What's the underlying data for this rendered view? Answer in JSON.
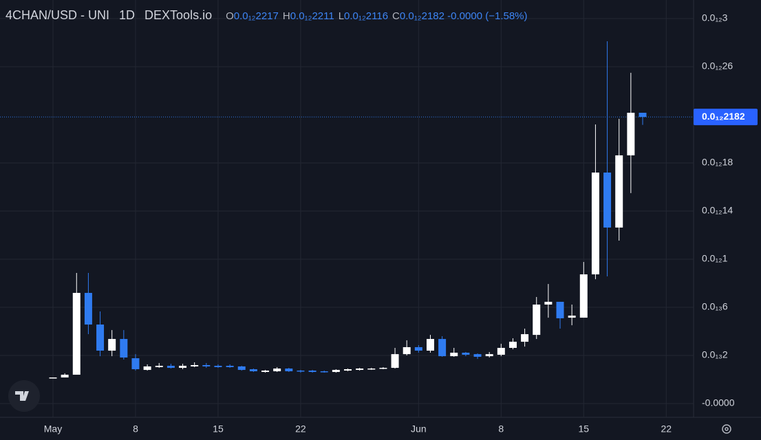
{
  "chart_data": {
    "type": "candlestick",
    "title": "4CHAN/USD - UNI",
    "interval": "1D",
    "source": "DEXTools.io",
    "ohlc_keys": [
      "O",
      "H",
      "L",
      "C"
    ],
    "ohlc_labels": [
      "0.0₁₂2217",
      "0.0₁₂2211",
      "0.0₁₂2116",
      "0.0₁₂2182"
    ],
    "change": "-0.0000",
    "change_percent": "(−1.58%)",
    "up_color": "#ffffff",
    "down_color": "#2f7bf0",
    "grid": true,
    "categories": [
      "May",
      null,
      null,
      null,
      null,
      null,
      null,
      "8",
      null,
      null,
      null,
      null,
      null,
      null,
      "15",
      null,
      null,
      null,
      null,
      null,
      null,
      "22",
      null,
      null,
      null,
      null,
      null,
      null,
      null,
      null,
      null,
      "Jun",
      null,
      null,
      null,
      null,
      null,
      null,
      "8",
      null,
      null,
      null,
      null,
      null,
      null,
      "15",
      null,
      null,
      null,
      null,
      null,
      null,
      "22"
    ],
    "open": [
      1.14e-15,
      1.71e-15,
      4e-15,
      7.2e-14,
      4.57e-14,
      2.4e-14,
      3.37e-14,
      1.77e-14,
      8e-15,
      1.03e-14,
      1.14e-14,
      9.71e-15,
      1.09e-14,
      1.2e-14,
      1.14e-14,
      1.14e-14,
      1.09e-14,
      8.57e-15,
      6.29e-15,
      6.86e-15,
      9.14e-15,
      7.43e-15,
      7.43e-15,
      6.86e-15,
      6.29e-15,
      7.43e-15,
      8e-15,
      8.57e-15,
      9.14e-15,
      9.71e-15,
      2.11e-14,
      2.69e-14,
      2.4e-14,
      3.37e-14,
      1.94e-14,
      2.23e-14,
      2.11e-14,
      1.94e-14,
      2.06e-14,
      2.63e-14,
      3.14e-14,
      3.71e-14,
      6.23e-14,
      6.46e-14,
      5.14e-14,
      5.14e-14,
      8.74e-14,
      1.72e-13,
      1.263e-13,
      1.863e-13,
      2.217e-13,
      null,
      null
    ],
    "high": [
      1.71e-15,
      5.14e-15,
      8.86e-14,
      8.86e-14,
      5.66e-14,
      4.11e-14,
      4.11e-14,
      2.11e-14,
      1.26e-14,
      1.37e-14,
      1.31e-14,
      1.31e-14,
      1.43e-14,
      1.37e-14,
      1.26e-14,
      1.26e-14,
      1.14e-14,
      9.14e-15,
      8e-15,
      1.03e-14,
      9.71e-15,
      8e-15,
      8e-15,
      7.43e-15,
      8.57e-15,
      9.14e-15,
      9.71e-15,
      9.71e-15,
      1.03e-14,
      2.63e-14,
      3.26e-14,
      2.86e-14,
      3.71e-14,
      3.6e-14,
      2.63e-14,
      2.29e-14,
      2.17e-14,
      2.29e-14,
      2.97e-14,
      3.43e-14,
      4.23e-14,
      6.86e-14,
      7.94e-14,
      6.46e-14,
      6.23e-14,
      9.77e-14,
      2.12e-13,
      2.811e-13,
      2.166e-13,
      2.549e-13,
      2.211e-13,
      null,
      null
    ],
    "low": [
      1.14e-15,
      1.71e-15,
      4e-15,
      3.77e-14,
      1.94e-14,
      1.94e-14,
      1.66e-14,
      7.43e-15,
      7.43e-15,
      9.71e-15,
      9.14e-15,
      8.57e-15,
      1.03e-14,
      9.71e-15,
      9.71e-15,
      9.71e-15,
      7.43e-15,
      6.29e-15,
      5.71e-15,
      6.29e-15,
      6.29e-15,
      5.71e-15,
      5.71e-15,
      5.71e-15,
      5.71e-15,
      6.86e-15,
      7.43e-15,
      8e-15,
      8.57e-15,
      9.14e-15,
      2e-14,
      2.23e-14,
      2.23e-14,
      1.89e-14,
      1.89e-14,
      1.94e-14,
      1.71e-14,
      1.83e-14,
      1.94e-14,
      2.51e-14,
      2.74e-14,
      3.37e-14,
      5.14e-14,
      4.23e-14,
      4.51e-14,
      5.14e-14,
      8.34e-14,
      8.57e-14,
      1.154e-13,
      1.549e-13,
      2.116e-13,
      null,
      null
    ],
    "close": [
      1.71e-15,
      4e-15,
      7.2e-14,
      4.57e-14,
      2.4e-14,
      3.37e-14,
      1.83e-14,
      8.57e-15,
      1.09e-14,
      1.14e-14,
      9.71e-15,
      1.14e-14,
      1.2e-14,
      1.09e-14,
      1.03e-14,
      1.03e-14,
      8e-15,
      6.86e-15,
      7.43e-15,
      9.14e-15,
      6.86e-15,
      6.86e-15,
      6.29e-15,
      6.29e-15,
      8e-15,
      8.57e-15,
      9.14e-15,
      9.14e-15,
      9.71e-15,
      2.11e-14,
      2.69e-14,
      2.4e-14,
      3.37e-14,
      1.94e-14,
      2.23e-14,
      2.06e-14,
      1.89e-14,
      2.11e-14,
      2.63e-14,
      3.14e-14,
      3.77e-14,
      6.23e-14,
      6.46e-14,
      5.09e-14,
      5.31e-14,
      8.74e-14,
      1.72e-13,
      1.263e-13,
      1.863e-13,
      2.217e-13,
      2.182e-13,
      null,
      null
    ],
    "ylim": [
      -3.14e-14,
      3.154e-13
    ],
    "yticks": [
      {
        "value": -2e-14,
        "label": "-0.0000"
      },
      {
        "value": 2e-14,
        "label": "0.0₁₃2"
      },
      {
        "value": 6e-14,
        "label": "0.0₁₃6"
      },
      {
        "value": 1e-13,
        "label": "0.0₁₂1"
      },
      {
        "value": 1.4e-13,
        "label": "0.0₁₂14"
      },
      {
        "value": 1.8e-13,
        "label": "0.0₁₂18"
      },
      {
        "value": 2.6e-13,
        "label": "0.0₁₂26"
      },
      {
        "value": 3e-13,
        "label": "0.0₁₂3"
      }
    ],
    "last_price": {
      "value": 2.182e-13,
      "label": "0.0₁₂2182"
    }
  }
}
